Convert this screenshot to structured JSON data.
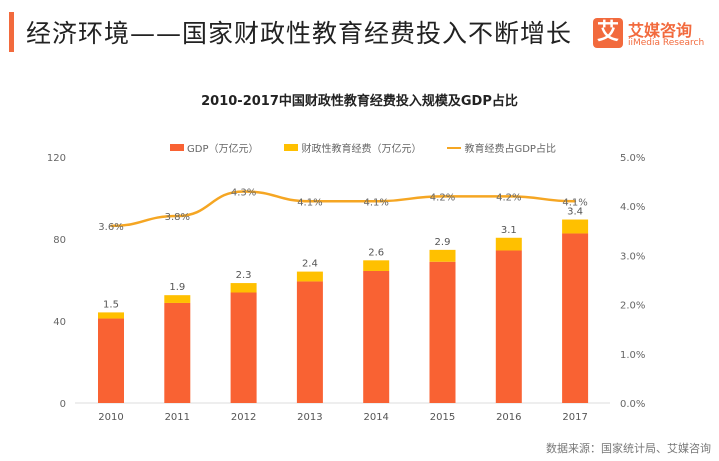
{
  "header": {
    "title": "经济环境——国家财政性教育经费投入不断增长"
  },
  "logo": {
    "glyph": "艾",
    "name_cn": "艾媒咨询",
    "name_en": "iiMedia Research"
  },
  "footer": {
    "source": "数据来源：国家统计局、艾媒咨询"
  },
  "colors": {
    "gdp": "#f96233",
    "edu": "#ffc000",
    "ratio": "#f5a623",
    "accent": "#f26a3d"
  },
  "chart_data": {
    "type": "bar",
    "title": "2010-2017中国财政性教育经费投入规模及GDP占比",
    "categories": [
      "2010",
      "2011",
      "2012",
      "2013",
      "2014",
      "2015",
      "2016",
      "2017"
    ],
    "series": [
      {
        "name": "GDP（万亿元）",
        "type": "bar",
        "stack": "a",
        "axis": "left",
        "values": [
          41.2,
          48.8,
          53.9,
          59.3,
          64.4,
          68.9,
          74.4,
          82.7
        ]
      },
      {
        "name": "财政性教育经费（万亿元）",
        "type": "bar",
        "stack": "a",
        "axis": "left",
        "values": [
          1.5,
          1.9,
          2.3,
          2.4,
          2.6,
          2.9,
          3.1,
          3.4
        ],
        "labels": [
          "1.5",
          "1.9",
          "2.3",
          "2.4",
          "2.6",
          "2.9",
          "3.1",
          "3.4"
        ]
      },
      {
        "name": "教育经费占GDP占比",
        "type": "line",
        "axis": "right",
        "values": [
          3.6,
          3.8,
          4.3,
          4.1,
          4.1,
          4.2,
          4.2,
          4.1
        ],
        "labels": [
          "3.6%",
          "3.8%",
          "4.3%",
          "4.1%",
          "4.1%",
          "4.2%",
          "4.2%",
          "4.1%"
        ]
      }
    ],
    "y_left": {
      "range": [
        0,
        120
      ],
      "ticks": [
        "0",
        "40",
        "80",
        "120"
      ]
    },
    "y_right": {
      "range": [
        0,
        5
      ],
      "ticks": [
        "0.0%",
        "1.0%",
        "2.0%",
        "3.0%",
        "4.0%",
        "5.0%"
      ]
    },
    "grid": false,
    "legend": "top"
  }
}
